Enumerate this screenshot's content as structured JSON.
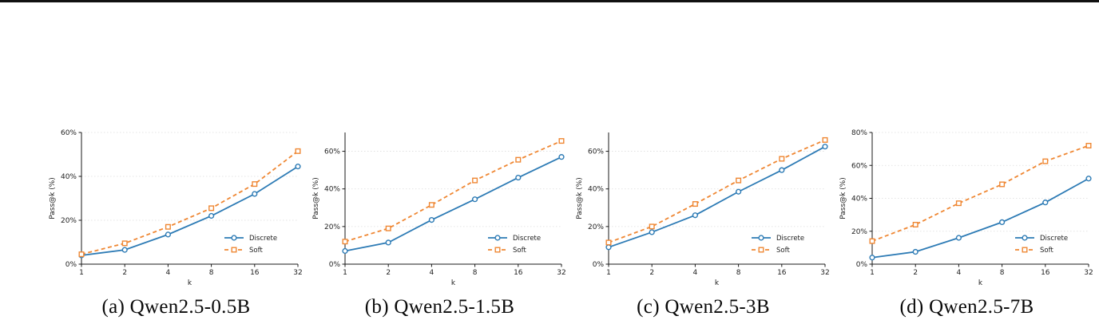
{
  "page": {
    "background": "#ffffff",
    "top_rule_color": "#111111"
  },
  "chart_data": [
    {
      "type": "line",
      "panel": "a",
      "caption": "(a) Qwen2.5-0.5B",
      "xlabel": "k",
      "ylabel": "Pass@k (%)",
      "x": [
        1,
        2,
        4,
        8,
        16,
        32
      ],
      "xscale": "log2",
      "ylim": [
        0,
        60
      ],
      "yticks": [
        0,
        20,
        40,
        60
      ],
      "ytick_suffix": "%",
      "grid": "horizontal-dashed",
      "legend_position": "lower-right",
      "legend": [
        "Discrete",
        "Soft"
      ],
      "series": [
        {
          "name": "Discrete",
          "color": "#2d7bb5",
          "marker": "circle",
          "line": "solid",
          "values": [
            4.0,
            6.5,
            13.5,
            22.0,
            32.0,
            44.5
          ]
        },
        {
          "name": "Soft",
          "color": "#ef8733",
          "marker": "square",
          "line": "dashed",
          "values": [
            4.5,
            9.5,
            17.0,
            25.5,
            36.5,
            51.5
          ]
        }
      ]
    },
    {
      "type": "line",
      "panel": "b",
      "caption": "(b) Qwen2.5-1.5B",
      "xlabel": "k",
      "ylabel": "Pass@k (%)",
      "x": [
        1,
        2,
        4,
        8,
        16,
        32
      ],
      "xscale": "log2",
      "ylim": [
        0,
        70
      ],
      "yticks": [
        0,
        20,
        40,
        60
      ],
      "ytick_suffix": "%",
      "grid": "horizontal-dashed",
      "legend_position": "lower-right",
      "legend": [
        "Discrete",
        "Soft"
      ],
      "series": [
        {
          "name": "Discrete",
          "color": "#2d7bb5",
          "marker": "circle",
          "line": "solid",
          "values": [
            7.0,
            11.5,
            23.5,
            34.5,
            46.0,
            57.0
          ]
        },
        {
          "name": "Soft",
          "color": "#ef8733",
          "marker": "square",
          "line": "dashed",
          "values": [
            12.0,
            19.0,
            31.5,
            44.5,
            55.5,
            65.5
          ]
        }
      ]
    },
    {
      "type": "line",
      "panel": "c",
      "caption": "(c) Qwen2.5-3B",
      "xlabel": "k",
      "ylabel": "Pass@k (%)",
      "x": [
        1,
        2,
        4,
        8,
        16,
        32
      ],
      "xscale": "log2",
      "ylim": [
        0,
        70
      ],
      "yticks": [
        0,
        20,
        40,
        60
      ],
      "ytick_suffix": "%",
      "grid": "horizontal-dashed",
      "legend_position": "lower-right",
      "legend": [
        "Discrete",
        "Soft"
      ],
      "series": [
        {
          "name": "Discrete",
          "color": "#2d7bb5",
          "marker": "circle",
          "line": "solid",
          "values": [
            9.0,
            17.0,
            26.0,
            38.5,
            50.0,
            62.5
          ]
        },
        {
          "name": "Soft",
          "color": "#ef8733",
          "marker": "square",
          "line": "dashed",
          "values": [
            11.5,
            20.0,
            32.0,
            44.5,
            56.0,
            66.0
          ]
        }
      ]
    },
    {
      "type": "line",
      "panel": "d",
      "caption": "(d) Qwen2.5-7B",
      "xlabel": "k",
      "ylabel": "Pass@k (%)",
      "x": [
        1,
        2,
        4,
        8,
        16,
        32
      ],
      "xscale": "log2",
      "ylim": [
        0,
        80
      ],
      "yticks": [
        0,
        20,
        40,
        60,
        80
      ],
      "ytick_suffix": "%",
      "grid": "horizontal-dashed",
      "legend_position": "lower-right",
      "legend": [
        "Discrete",
        "Soft"
      ],
      "series": [
        {
          "name": "Discrete",
          "color": "#2d7bb5",
          "marker": "circle",
          "line": "solid",
          "values": [
            4.0,
            7.5,
            16.0,
            25.5,
            37.5,
            52.0
          ]
        },
        {
          "name": "Soft",
          "color": "#ef8733",
          "marker": "square",
          "line": "dashed",
          "values": [
            14.0,
            24.0,
            37.0,
            48.5,
            62.5,
            72.0
          ]
        }
      ]
    }
  ]
}
